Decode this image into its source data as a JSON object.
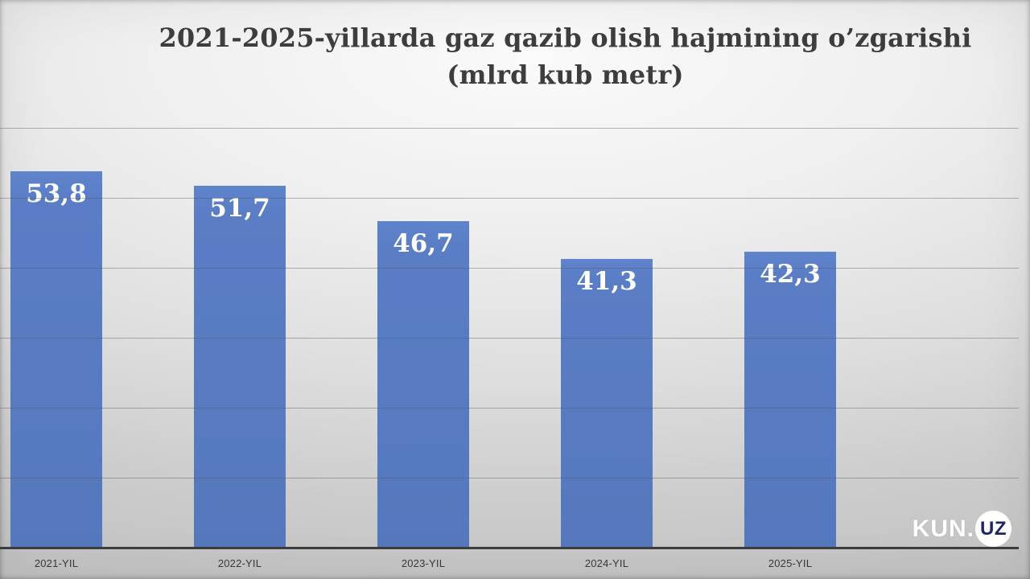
{
  "slide": {
    "title_line1": "2021-2025-yillarda gaz qazib olish hajmining o’zgarishi",
    "title_line2": "(mlrd kub metr)"
  },
  "chart_data": {
    "type": "bar",
    "title": "2021-2025-yillarda gaz qazib olish hajmining o’zgarishi (mlrd kub metr)",
    "categories": [
      "2021-YIL",
      "2022-YIL",
      "2023-YIL",
      "2024-YIL",
      "2025-YIL"
    ],
    "values": [
      53.8,
      51.7,
      46.7,
      41.3,
      42.3
    ],
    "value_labels": [
      "53,8",
      "51,7",
      "46,7",
      "41,3",
      "42,3"
    ],
    "xlabel": "",
    "ylabel": "",
    "ylim": [
      0,
      60
    ],
    "gridline_values": [
      10,
      20,
      30,
      40,
      50,
      60
    ],
    "grid": true,
    "legend": false,
    "bar_color": "#5b7ec6",
    "value_label_color": "#ffffff",
    "gridline_color": "rgba(85,85,85,0.42)",
    "axis_color": "#3c3c3c",
    "background_color": "#dedede"
  },
  "logo": {
    "text": "KUN.",
    "badge": "UZ",
    "badge_bg_color": "#ffffff",
    "badge_text_color": "#1c2667",
    "text_color": "#ffffff"
  }
}
